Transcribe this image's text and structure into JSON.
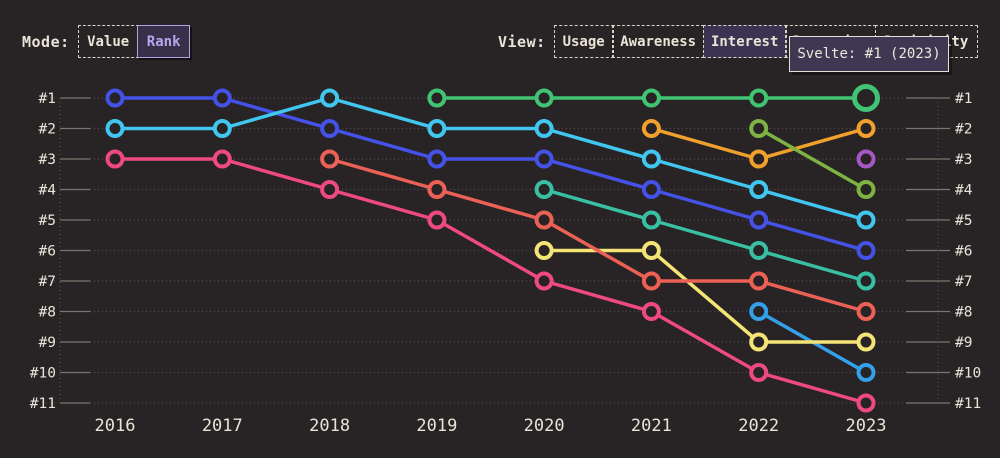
{
  "header": {
    "mode": {
      "label": "Mode:",
      "options": [
        {
          "label": "Value",
          "selected": false
        },
        {
          "label": "Rank",
          "selected": true
        }
      ]
    },
    "view": {
      "label": "View:",
      "options": [
        {
          "label": "Usage",
          "selected": false
        },
        {
          "label": "Awareness",
          "selected": false
        },
        {
          "label": "Interest",
          "selected": true
        },
        {
          "label": "Retention",
          "selected": false
        },
        {
          "label": "Positivity",
          "selected": false
        }
      ]
    }
  },
  "tooltip": {
    "text": "Svelte: #1 (2023)"
  },
  "colors": {
    "background": "#282324",
    "text_cream": "#e9e4d8",
    "grid_dim": "#544e4f",
    "tick_bright": "#7b746f",
    "accent_purple": "#b6a7ee"
  },
  "chart_data": {
    "type": "line",
    "subtype": "bump-rank-chart",
    "x": [
      2016,
      2017,
      2018,
      2019,
      2020,
      2021,
      2022,
      2023
    ],
    "rank_labels": [
      "#1",
      "#2",
      "#3",
      "#4",
      "#5",
      "#6",
      "#7",
      "#8",
      "#9",
      "#10",
      "#11"
    ],
    "ylim": [
      1,
      11
    ],
    "grid": "dotted",
    "series": [
      {
        "id": "blue",
        "color": "#4452e8",
        "ranks": [
          1,
          1,
          2,
          3,
          3,
          4,
          5,
          6
        ]
      },
      {
        "id": "cyan",
        "color": "#41c6ef",
        "ranks": [
          2,
          2,
          1,
          2,
          2,
          3,
          4,
          5
        ]
      },
      {
        "id": "pink",
        "color": "#ef4a7f",
        "ranks": [
          3,
          3,
          4,
          5,
          7,
          8,
          10,
          11
        ]
      },
      {
        "id": "salmon",
        "color": "#ec6156",
        "ranks": [
          null,
          null,
          3,
          4,
          5,
          7,
          7,
          8
        ]
      },
      {
        "id": "green",
        "color": "#40c473",
        "ranks": [
          null,
          null,
          null,
          1,
          1,
          1,
          1,
          1
        ]
      },
      {
        "id": "teal",
        "color": "#39c0a4",
        "ranks": [
          null,
          null,
          null,
          null,
          4,
          5,
          6,
          7
        ]
      },
      {
        "id": "yellow",
        "color": "#f3e475",
        "ranks": [
          null,
          null,
          null,
          null,
          6,
          6,
          9,
          9
        ]
      },
      {
        "id": "orange",
        "color": "#f0a02c",
        "ranks": [
          null,
          null,
          null,
          null,
          null,
          2,
          3,
          2
        ]
      },
      {
        "id": "olive",
        "color": "#7cb342",
        "ranks": [
          null,
          null,
          null,
          null,
          null,
          null,
          2,
          4
        ]
      },
      {
        "id": "sky",
        "color": "#33a1ea",
        "ranks": [
          null,
          null,
          null,
          null,
          null,
          null,
          8,
          10
        ]
      },
      {
        "id": "purple",
        "color": "#a659c6",
        "ranks": [
          null,
          null,
          null,
          null,
          null,
          null,
          null,
          3
        ]
      }
    ],
    "highlight": {
      "series": "green",
      "year": 2023,
      "rank": 1,
      "label": "Svelte: #1 (2023)"
    }
  }
}
